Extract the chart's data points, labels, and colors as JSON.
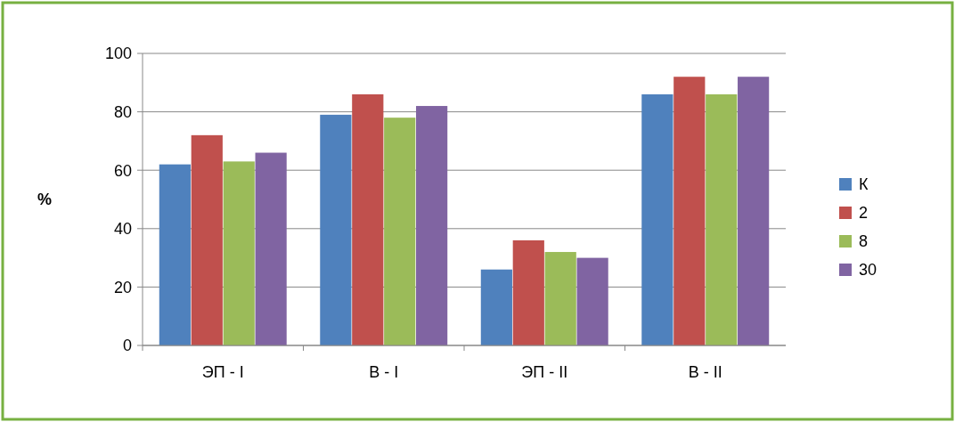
{
  "chart_data": {
    "type": "bar",
    "ylabel": "%",
    "categories": [
      "ЭП - I",
      "В - I",
      "ЭП - II",
      "В - II"
    ],
    "series": [
      {
        "name": "К",
        "color": "#4f81bd",
        "values": [
          62,
          79,
          26,
          86
        ]
      },
      {
        "name": "2",
        "color": "#c0504d",
        "values": [
          72,
          86,
          36,
          92
        ]
      },
      {
        "name": "8",
        "color": "#9bbb59",
        "values": [
          63,
          78,
          32,
          86
        ]
      },
      {
        "name": "30",
        "color": "#8064a2",
        "values": [
          66,
          82,
          30,
          92
        ]
      }
    ],
    "ylim": [
      0,
      100
    ],
    "yticks": [
      0,
      20,
      40,
      60,
      80,
      100
    ],
    "grid": "y",
    "legend": "right"
  }
}
